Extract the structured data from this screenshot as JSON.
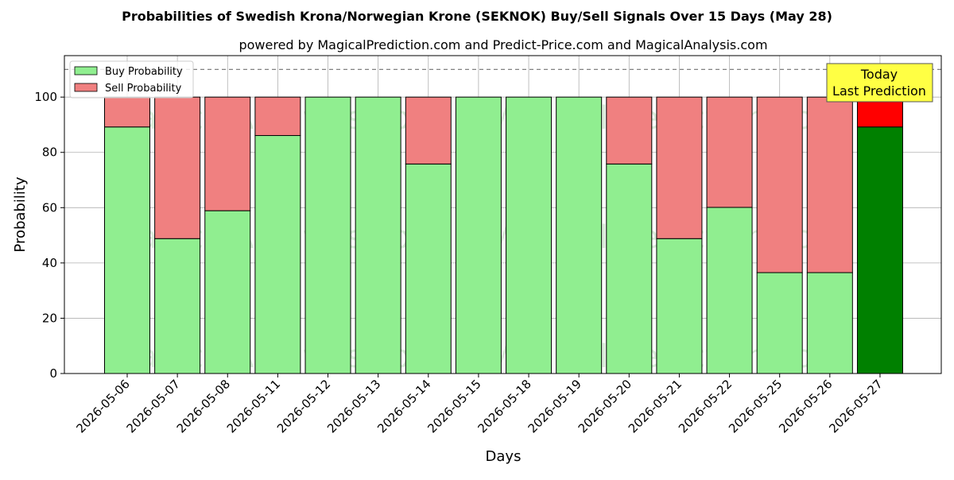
{
  "chart_data": {
    "type": "bar",
    "stacked": true,
    "title": "Probabilities of Swedish Krona/Norwegian Krone (SEKNOK) Buy/Sell Signals Over 15 Days (May 28)",
    "subtitle": "powered by MagicalPrediction.com and Predict-Price.com and MagicalAnalysis.com",
    "xlabel": "Days",
    "ylabel": "Probability",
    "ylim": [
      0,
      115
    ],
    "yticks": [
      0,
      20,
      40,
      60,
      80,
      100
    ],
    "categories": [
      "2026-05-06",
      "2026-05-07",
      "2026-05-08",
      "2026-05-11",
      "2026-05-12",
      "2026-05-13",
      "2026-05-14",
      "2026-05-15",
      "2026-05-18",
      "2026-05-19",
      "2026-05-20",
      "2026-05-21",
      "2026-05-22",
      "2026-05-25",
      "2026-05-26",
      "2026-05-27"
    ],
    "series": [
      {
        "name": "Buy Probability",
        "color": "#90ee90",
        "values": [
          89.2,
          48.8,
          58.9,
          86.1,
          100,
          100,
          75.8,
          100,
          100,
          100,
          75.8,
          48.8,
          60.1,
          36.5,
          36.5,
          89.2
        ]
      },
      {
        "name": "Sell Probability",
        "color": "#f08080",
        "values": [
          10.8,
          51.2,
          41.1,
          13.9,
          0,
          0,
          24.2,
          0,
          0,
          0,
          24.2,
          51.2,
          39.9,
          63.5,
          63.5,
          10.8
        ]
      }
    ],
    "highlight": {
      "index": 15,
      "buy_color": "#008000",
      "sell_color": "#ff0000"
    },
    "reference_line": {
      "y": 110,
      "style": "dashed",
      "color": "#808080"
    },
    "annotation": {
      "line1": "Today",
      "line2": "Last Prediction",
      "background": "#ffff44"
    },
    "watermarks": [
      "MagicalAnalysis.com",
      "MagicalPrediction.com"
    ],
    "grid": true,
    "legend_position": "top-left"
  }
}
